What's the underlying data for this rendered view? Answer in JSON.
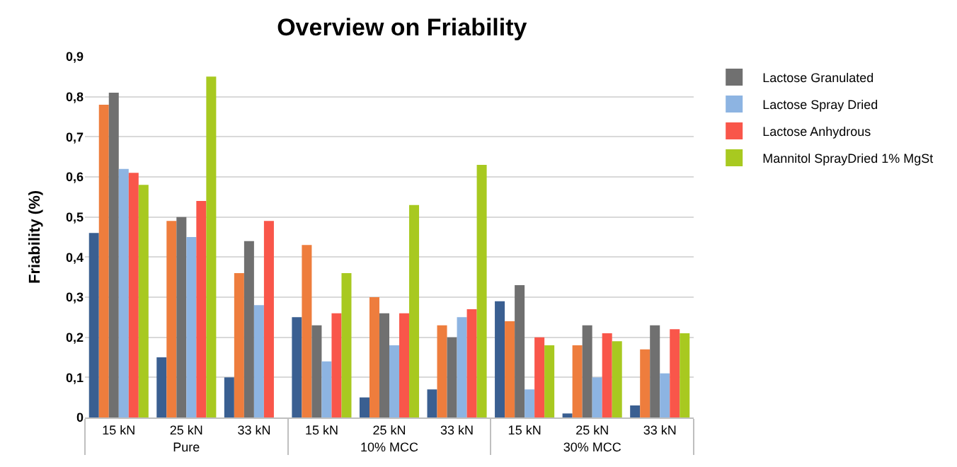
{
  "chart_data": {
    "type": "bar",
    "title": "Overview on Friability",
    "ylabel": "Friability (%)",
    "categories": [
      "15 kN",
      "25 kN",
      "33 kN",
      "15 kN",
      "25 kN",
      "33 kN",
      "15 kN",
      "25 kN",
      "33 kN"
    ],
    "annotations": [
      "Pure",
      "10% MCC",
      "30% MCC"
    ],
    "series": [
      {
        "color": "#3a5f91",
        "values": [
          0.46,
          0.15,
          0.1,
          0.25,
          0.05,
          0.07,
          0.29,
          0.01,
          0.03
        ]
      },
      {
        "color": "#ee7d3d",
        "values": [
          0.78,
          0.49,
          0.36,
          0.43,
          0.3,
          0.23,
          0.24,
          0.18,
          0.17
        ]
      },
      {
        "name": "Lactose Granulated",
        "color": "#707070",
        "values": [
          0.81,
          0.5,
          0.44,
          0.23,
          0.26,
          0.2,
          0.33,
          0.23,
          0.23
        ]
      },
      {
        "name": "Lactose Spray Dried",
        "color": "#8db4e2",
        "values": [
          0.62,
          0.45,
          0.28,
          0.14,
          0.18,
          0.25,
          0.07,
          0.1,
          0.11
        ]
      },
      {
        "name": "Lactose Anhydrous",
        "color": "#f9564a",
        "values": [
          0.61,
          0.54,
          0.49,
          0.26,
          0.26,
          0.27,
          0.2,
          0.21,
          0.22
        ]
      },
      {
        "name": "Mannitol SprayDried 1% MgSt",
        "color": "#a8c920",
        "values": [
          0.58,
          0.85,
          null,
          0.36,
          0.53,
          0.63,
          0.18,
          0.19,
          0.21
        ]
      }
    ],
    "ylim": [
      0,
      0.9
    ],
    "yticks": [
      {
        "value": 0,
        "label": "0"
      },
      {
        "value": 0.1,
        "label": "0,1"
      },
      {
        "value": 0.2,
        "label": "0,2"
      },
      {
        "value": 0.3,
        "label": "0,3"
      },
      {
        "value": 0.4,
        "label": "0,4"
      },
      {
        "value": 0.5,
        "label": "0,5"
      },
      {
        "value": 0.6,
        "label": "0,6"
      },
      {
        "value": 0.7,
        "label": "0,7"
      },
      {
        "value": 0.8,
        "label": "0,8"
      },
      {
        "value": 0.9,
        "label": "0,9"
      }
    ],
    "grid": "y",
    "legend": "right"
  }
}
